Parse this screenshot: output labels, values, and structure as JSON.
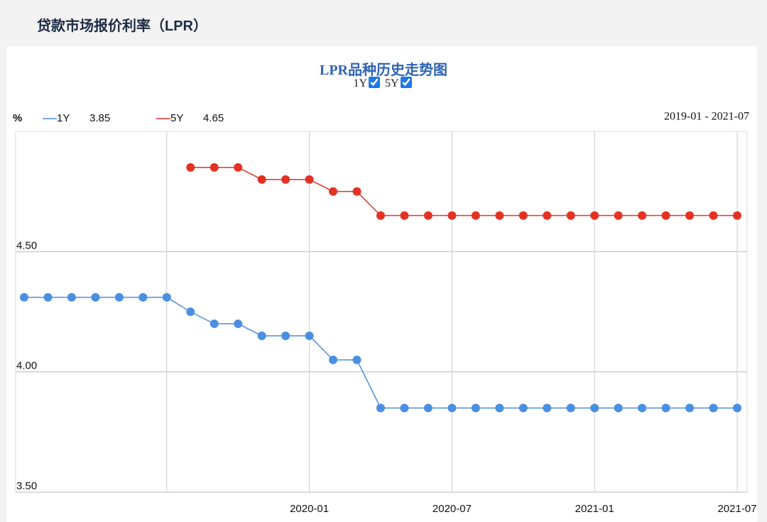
{
  "header": {
    "title": "贷款市场报价利率（LPR）"
  },
  "chart_data": {
    "type": "line",
    "title": "LPR品种历史走势图",
    "y_label": "%",
    "date_range": "2019-01 - 2021-07",
    "categories": [
      null,
      null,
      null,
      null,
      null,
      null,
      null,
      null,
      null,
      null,
      null,
      null,
      "2020-01",
      null,
      null,
      null,
      null,
      null,
      "2020-07",
      null,
      null,
      null,
      null,
      null,
      "2021-01",
      null,
      null,
      null,
      null,
      null,
      "2021-07"
    ],
    "xticks": [
      6,
      12,
      18,
      24,
      30
    ],
    "ylim": [
      3.5,
      5.0
    ],
    "yticks": [
      {
        "value": 3.5,
        "label": "3.50"
      },
      {
        "value": 4.0,
        "label": "4.00"
      },
      {
        "value": 4.5,
        "label": "4.50"
      }
    ],
    "grid": true,
    "series": [
      {
        "name": "1Y",
        "color": "#4a8fe0",
        "values": [
          4.31,
          4.31,
          4.31,
          4.31,
          4.31,
          4.31,
          4.31,
          4.25,
          4.2,
          4.2,
          4.15,
          4.15,
          4.15,
          4.05,
          4.05,
          3.85,
          3.85,
          3.85,
          3.85,
          3.85,
          3.85,
          3.85,
          3.85,
          3.85,
          3.85,
          3.85,
          3.85,
          3.85,
          3.85,
          3.85,
          3.85
        ]
      },
      {
        "name": "5Y",
        "color": "#e33224",
        "values": [
          null,
          null,
          null,
          null,
          null,
          null,
          null,
          4.85,
          4.85,
          4.85,
          4.8,
          4.8,
          4.8,
          4.75,
          4.75,
          4.65,
          4.65,
          4.65,
          4.65,
          4.65,
          4.65,
          4.65,
          4.65,
          4.65,
          4.65,
          4.65,
          4.65,
          4.65,
          4.65,
          4.65,
          4.65
        ]
      }
    ]
  }
}
